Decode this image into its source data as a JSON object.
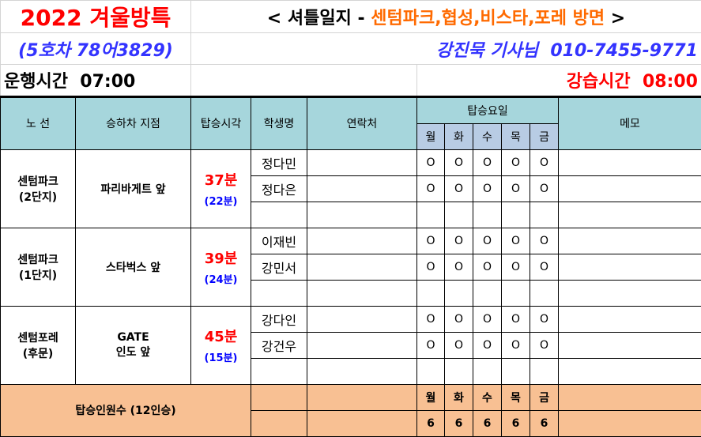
{
  "header": {
    "title": "2022 겨울방특",
    "subtitle_prefix": "< 셔틀일지 - ",
    "subtitle_area": "센텀파크,협성,비스타,포레 방면",
    "subtitle_suffix": " >",
    "bus": "(5호차 78어3829)",
    "driver": "강진묵 기사님  010-7455-9771",
    "run_time": "운행시간  07:00",
    "lesson_time": "강습시간  08:00"
  },
  "columns": {
    "route": "노 선",
    "stop": "승하차 지점",
    "time": "탑승시각",
    "student": "학생명",
    "contact": "연락처",
    "days_group": "탑승요일",
    "memo": "메모"
  },
  "days": [
    "월",
    "화",
    "수",
    "목",
    "금"
  ],
  "groups": [
    {
      "route": [
        "센텀파크",
        "(2단지)"
      ],
      "stop": [
        "파리바게트 앞"
      ],
      "time": "37분",
      "offset": "(22분)",
      "students": [
        {
          "name": "정다민",
          "days": [
            "O",
            "O",
            "O",
            "O",
            "O"
          ]
        },
        {
          "name": "정다은",
          "days": [
            "O",
            "O",
            "O",
            "O",
            "O"
          ]
        },
        {
          "name": "",
          "days": [
            "",
            "",
            "",
            "",
            ""
          ]
        }
      ]
    },
    {
      "route": [
        "센텀파크",
        "(1단지)"
      ],
      "stop": [
        "스타벅스 앞"
      ],
      "time": "39분",
      "offset": "(24분)",
      "students": [
        {
          "name": "이재빈",
          "days": [
            "O",
            "O",
            "O",
            "O",
            "O"
          ]
        },
        {
          "name": "강민서",
          "days": [
            "O",
            "O",
            "O",
            "O",
            "O"
          ]
        },
        {
          "name": "",
          "days": [
            "",
            "",
            "",
            "",
            ""
          ]
        }
      ]
    },
    {
      "route": [
        "센텀포레",
        "(후문)"
      ],
      "stop": [
        "GATE",
        "인도 앞"
      ],
      "time": "45분",
      "offset": "(15분)",
      "students": [
        {
          "name": "강다인",
          "days": [
            "O",
            "O",
            "O",
            "O",
            "O"
          ]
        },
        {
          "name": "강건우",
          "days": [
            "O",
            "O",
            "O",
            "O",
            "O"
          ]
        },
        {
          "name": "",
          "days": [
            "",
            "",
            "",
            "",
            ""
          ]
        }
      ]
    }
  ],
  "footer": {
    "label": "탑승인원수 (12인승)",
    "counts": [
      "6",
      "6",
      "6",
      "6",
      "6"
    ]
  },
  "colors": {
    "header_bg": "#a6d6dc",
    "day_bg": "#b8cce4",
    "footer_bg": "#f8c093",
    "title": "#ff0000",
    "accent_orange": "#ff6a00",
    "blue": "#3333ff"
  }
}
